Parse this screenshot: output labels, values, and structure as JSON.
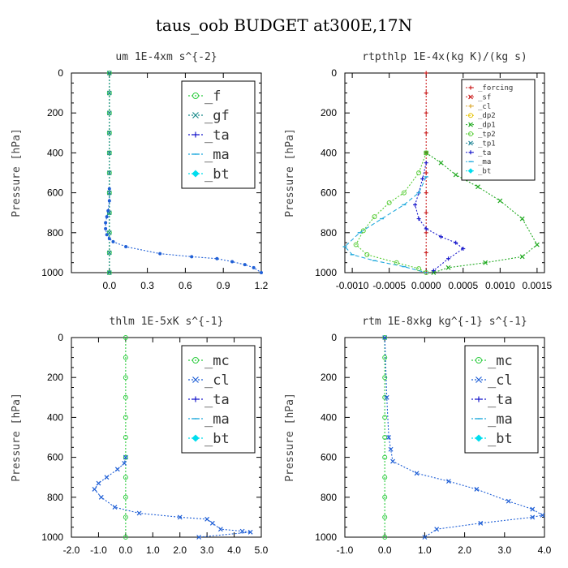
{
  "figure_title": "taus_oob  BUDGET at300E,17N",
  "chart_data": [
    {
      "type": "line",
      "title": "um  1E-4xm s^{-2}",
      "ylabel": "Pressure [hPa]",
      "xlim": [
        -0.3,
        1.2
      ],
      "ylim": [
        1000,
        0
      ],
      "xticks": [
        "0.0",
        "0.3",
        "0.6",
        "0.9",
        "1.2"
      ],
      "xtick_values": [
        0,
        0.3,
        0.6,
        0.9,
        1.2
      ],
      "yticks": [
        "0",
        "200",
        "400",
        "600",
        "800",
        "1000"
      ],
      "legend": "large",
      "series": [
        {
          "name": "_f",
          "color": "#2ecc40",
          "marker": "o",
          "x": [
            0,
            0,
            0,
            0,
            0,
            0,
            0,
            0,
            0,
            0,
            0
          ],
          "y": [
            0,
            100,
            200,
            300,
            400,
            500,
            600,
            700,
            800,
            900,
            1000
          ]
        },
        {
          "name": "_gf",
          "color": "#1a8a8a",
          "marker": "x",
          "x": [
            0,
            0,
            0,
            0,
            0,
            0,
            0,
            0,
            0,
            0,
            0
          ],
          "y": [
            0,
            100,
            200,
            300,
            400,
            500,
            600,
            700,
            800,
            900,
            1000
          ]
        },
        {
          "name": "_ta",
          "color": "#1a1acc",
          "marker": "+",
          "x": [],
          "y": []
        },
        {
          "name": "_ma",
          "color": "#22aadd",
          "marker": "-",
          "x": [],
          "y": []
        },
        {
          "name": "_bt",
          "color": "#00ddee",
          "marker": "diamond",
          "x": [],
          "y": []
        },
        {
          "name": "",
          "color": "#1f5fd6",
          "marker": "dot",
          "x": [
            0,
            0,
            -0.01,
            -0.02,
            -0.03,
            -0.03,
            -0.02,
            0,
            0.03,
            0.13,
            0.4,
            0.65,
            0.85,
            0.97,
            1.07,
            1.14,
            1.2
          ],
          "y": [
            580,
            640,
            690,
            720,
            750,
            780,
            810,
            830,
            845,
            870,
            905,
            920,
            930,
            945,
            960,
            975,
            1000
          ]
        }
      ]
    },
    {
      "type": "line",
      "title": "rtpthlp  1E-4x(kg K)/(kg s)",
      "ylabel": "Pressure [hPa]",
      "xlim": [
        -0.0011,
        0.0016
      ],
      "ylim": [
        1000,
        0
      ],
      "xticks": [
        "-0.0010",
        "-0.0005",
        "0.0000",
        "0.0005",
        "0.0010",
        "0.0015"
      ],
      "xtick_values": [
        -0.001,
        -0.0005,
        0,
        0.0005,
        0.001,
        0.0015
      ],
      "yticks": [
        "0",
        "200",
        "400",
        "600",
        "800",
        "1000"
      ],
      "legend": "small",
      "series": [
        {
          "name": "_forcing",
          "color": "#cc2222",
          "marker": "+",
          "x": [
            0,
            0,
            0,
            0,
            0,
            0,
            0,
            0,
            0,
            0,
            0
          ],
          "y": [
            0,
            100,
            200,
            300,
            400,
            500,
            600,
            700,
            800,
            900,
            1000
          ]
        },
        {
          "name": "_sf",
          "color": "#cc2222",
          "marker": "x",
          "x": [],
          "y": []
        },
        {
          "name": "_cl",
          "color": "#ddaa33",
          "marker": "+",
          "x": [],
          "y": []
        },
        {
          "name": "_dp2",
          "color": "#e6c200",
          "marker": "o",
          "x": [],
          "y": []
        },
        {
          "name": "_dp1",
          "color": "#22aa22",
          "marker": "x",
          "x": [
            0,
            0.0002,
            0.0004,
            0.0007,
            0.001,
            0.0013,
            0.0015,
            0.0013,
            0.0008,
            0.0003,
            0.0001
          ],
          "y": [
            400,
            450,
            510,
            570,
            640,
            730,
            860,
            920,
            950,
            975,
            1000
          ]
        },
        {
          "name": "_tp2",
          "color": "#55cc33",
          "marker": "o",
          "x": [
            0,
            -0.0001,
            -0.0003,
            -0.0005,
            -0.0007,
            -0.00085,
            -0.00095,
            -0.0008,
            -0.0004,
            -0.0001,
            0
          ],
          "y": [
            400,
            500,
            600,
            650,
            720,
            790,
            860,
            910,
            950,
            980,
            1000
          ]
        },
        {
          "name": "_tp1",
          "color": "#2a8a9a",
          "marker": "x",
          "x": [],
          "y": []
        },
        {
          "name": "_ta",
          "color": "#1a1acc",
          "marker": "+",
          "x": [
            0,
            -5e-05,
            -0.0001,
            -0.00015,
            -0.0001,
            0,
            0.0002,
            0.0004,
            0.0005,
            0.0003,
            0.0001
          ],
          "y": [
            450,
            530,
            600,
            660,
            730,
            780,
            820,
            850,
            880,
            930,
            990
          ]
        },
        {
          "name": "_ma",
          "color": "#22aadd",
          "marker": "-",
          "x": [
            0,
            -0.0001,
            -0.0003,
            -0.0006,
            -0.0009,
            -0.0011,
            -0.001,
            -0.0007,
            -0.0003,
            0
          ],
          "y": [
            520,
            600,
            660,
            730,
            800,
            870,
            910,
            940,
            970,
            1000
          ]
        },
        {
          "name": "_bt",
          "color": "#00ddee",
          "marker": "diamond",
          "x": [],
          "y": []
        }
      ]
    },
    {
      "type": "line",
      "title": "thlm  1E-5xK s^{-1}",
      "ylabel": "Pressure [hPa]",
      "xlim": [
        -2.0,
        5.0
      ],
      "ylim": [
        1000,
        0
      ],
      "xticks": [
        "-2.0",
        "-1.0",
        "0.0",
        "1.0",
        "2.0",
        "3.0",
        "4.0",
        "5.0"
      ],
      "xtick_values": [
        -2,
        -1,
        0,
        1,
        2,
        3,
        4,
        5
      ],
      "yticks": [
        "0",
        "200",
        "400",
        "600",
        "800",
        "1000"
      ],
      "legend": "large",
      "series": [
        {
          "name": "_mc",
          "color": "#2ecc40",
          "marker": "o",
          "x": [
            0,
            0,
            0,
            0,
            0,
            0,
            0,
            0,
            0,
            0,
            0
          ],
          "y": [
            0,
            100,
            200,
            300,
            400,
            500,
            600,
            700,
            800,
            900,
            1000
          ]
        },
        {
          "name": "_cl",
          "color": "#1f5fd6",
          "marker": "x",
          "x": [
            0,
            -0.05,
            -0.3,
            -0.7,
            -1.0,
            -1.15,
            -0.9,
            -0.4,
            0.5,
            2.0,
            3.0,
            3.2,
            3.5,
            4.3,
            4.6,
            2.7
          ],
          "y": [
            600,
            630,
            660,
            700,
            730,
            760,
            800,
            850,
            880,
            900,
            910,
            930,
            960,
            970,
            975,
            1000
          ]
        },
        {
          "name": "_ta",
          "color": "#1a1acc",
          "marker": "+",
          "x": [],
          "y": []
        },
        {
          "name": "_ma",
          "color": "#22aadd",
          "marker": "-",
          "x": [],
          "y": []
        },
        {
          "name": "_bt",
          "color": "#00ddee",
          "marker": "diamond",
          "x": [],
          "y": []
        }
      ]
    },
    {
      "type": "line",
      "title": "rtm  1E-8xkg kg^{-1} s^{-1}",
      "ylabel": "Pressure [hPa]",
      "xlim": [
        -1.0,
        4.0
      ],
      "ylim": [
        1000,
        0
      ],
      "xticks": [
        "-1.0",
        "0.0",
        "1.0",
        "2.0",
        "3.0",
        "4.0"
      ],
      "xtick_values": [
        -1,
        0,
        1,
        2,
        3,
        4
      ],
      "yticks": [
        "0",
        "200",
        "400",
        "600",
        "800",
        "1000"
      ],
      "legend": "large",
      "series": [
        {
          "name": "_mc",
          "color": "#2ecc40",
          "marker": "o",
          "x": [
            0,
            0,
            0,
            0,
            0,
            0,
            0,
            0,
            0,
            0,
            0
          ],
          "y": [
            0,
            100,
            200,
            300,
            400,
            500,
            600,
            700,
            800,
            900,
            1000
          ]
        },
        {
          "name": "_cl",
          "color": "#1f5fd6",
          "marker": "x",
          "x": [
            0,
            0.05,
            0.1,
            0.15,
            0.2,
            0.8,
            1.6,
            2.3,
            3.1,
            3.7,
            3.95,
            3.7,
            2.4,
            1.3,
            1.0
          ],
          "y": [
            0,
            300,
            500,
            560,
            620,
            680,
            720,
            760,
            820,
            860,
            890,
            900,
            930,
            960,
            1000
          ]
        },
        {
          "name": "_ta",
          "color": "#1a1acc",
          "marker": "+",
          "x": [],
          "y": []
        },
        {
          "name": "_ma",
          "color": "#22aadd",
          "marker": "-",
          "x": [],
          "y": []
        },
        {
          "name": "_bt",
          "color": "#00ddee",
          "marker": "diamond",
          "x": [],
          "y": []
        }
      ]
    }
  ]
}
